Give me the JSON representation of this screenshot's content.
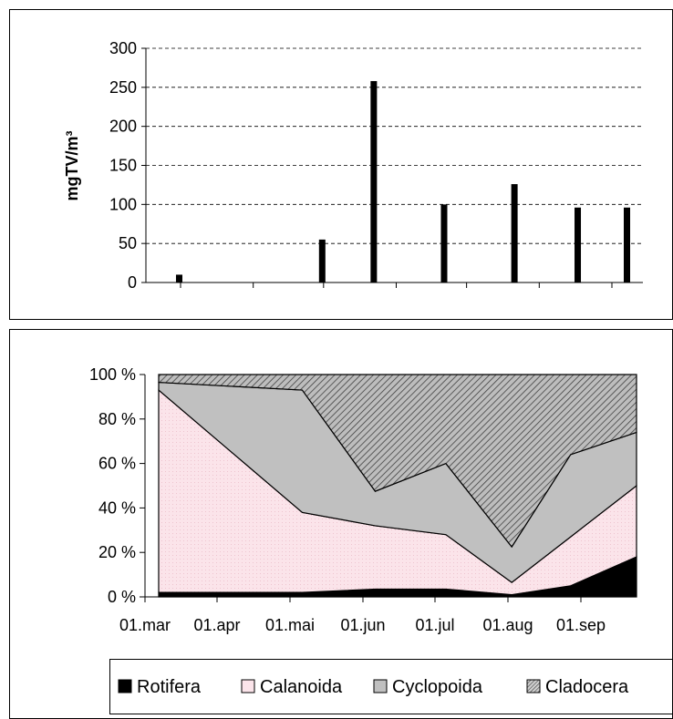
{
  "chart_data": [
    {
      "type": "bar",
      "ylabel": "mgTV/m³",
      "ylim": [
        0,
        300
      ],
      "yticks": [
        0,
        50,
        100,
        150,
        200,
        250,
        300
      ],
      "grid": "horizontal dashed",
      "x_dates": [
        "03-01",
        "05-01",
        "05-23",
        "06-22",
        "07-22",
        "08-18",
        "09-08"
      ],
      "values": [
        10,
        55,
        258,
        100,
        126,
        96,
        96
      ]
    },
    {
      "type": "area",
      "stacked": true,
      "percent": true,
      "ylim": [
        0,
        100
      ],
      "yticks": [
        "0 %",
        "20 %",
        "40 %",
        "60 %",
        "80 %",
        "100 %"
      ],
      "xticks": [
        "01.mar",
        "01.apr",
        "01.mai",
        "01.jun",
        "01.jul",
        "01.aug",
        "01.sep"
      ],
      "x_dates": [
        "03-01",
        "05-01",
        "06-01",
        "07-01",
        "07-29",
        "08-23",
        "09-20"
      ],
      "series": [
        {
          "name": "Rotifera",
          "color": "#000000",
          "values": [
            2,
            2,
            3.5,
            3.5,
            1,
            5,
            18
          ]
        },
        {
          "name": "Calanoida",
          "color": "#fbe4ea",
          "values": [
            91,
            36,
            28.5,
            24.5,
            5.5,
            22,
            32
          ]
        },
        {
          "name": "Cyclopoida",
          "color": "#c0c0c0",
          "values": [
            3.5,
            55,
            15.5,
            32,
            16,
            37,
            24
          ]
        },
        {
          "name": "Cladocera",
          "color": "#8c8c8c",
          "values": [
            3.5,
            7,
            52.5,
            40,
            77.5,
            36,
            26
          ]
        }
      ],
      "legend_position": "bottom"
    }
  ]
}
